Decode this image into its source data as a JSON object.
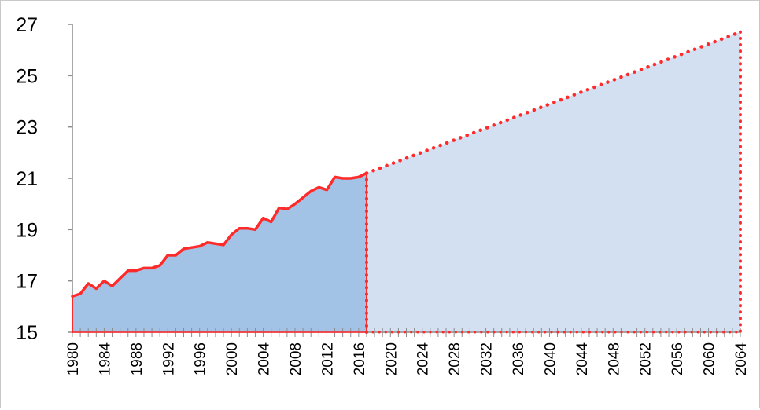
{
  "chart_data": {
    "type": "area",
    "title": "",
    "xlabel": "",
    "ylabel": "",
    "xlim": [
      1980,
      2064
    ],
    "ylim": [
      15,
      27
    ],
    "yticks": [
      15,
      17,
      19,
      21,
      23,
      25,
      27
    ],
    "xticks": [
      1980,
      1984,
      1988,
      1992,
      1996,
      2000,
      2004,
      2008,
      2012,
      2016,
      2020,
      2024,
      2028,
      2032,
      2036,
      2040,
      2044,
      2048,
      2052,
      2056,
      2060,
      2064
    ],
    "grid": false,
    "legend": "none",
    "series": [
      {
        "style": "solid",
        "line_color": "#ff2a2a",
        "fill_color": "#a3c3e6",
        "x": [
          1980,
          1981,
          1982,
          1983,
          1984,
          1985,
          1986,
          1987,
          1988,
          1989,
          1990,
          1991,
          1992,
          1993,
          1994,
          1995,
          1996,
          1997,
          1998,
          1999,
          2000,
          2001,
          2002,
          2003,
          2004,
          2005,
          2006,
          2007,
          2008,
          2009,
          2010,
          2011,
          2012,
          2013,
          2014,
          2015,
          2016,
          2017
        ],
        "y": [
          16.4,
          16.5,
          16.9,
          16.7,
          17.0,
          16.8,
          17.1,
          17.4,
          17.4,
          17.5,
          17.5,
          17.6,
          18.0,
          18.0,
          18.25,
          18.3,
          18.35,
          18.5,
          18.45,
          18.4,
          18.8,
          19.05,
          19.05,
          19.0,
          19.45,
          19.3,
          19.85,
          19.8,
          20.0,
          20.25,
          20.5,
          20.65,
          20.55,
          21.05,
          21.0,
          21.0,
          21.05,
          21.2
        ]
      },
      {
        "style": "dotted",
        "line_color": "#ff2a2a",
        "fill_color": "#d3e0f2",
        "x": [
          2017,
          2064
        ],
        "y": [
          21.2,
          26.7
        ]
      }
    ]
  }
}
